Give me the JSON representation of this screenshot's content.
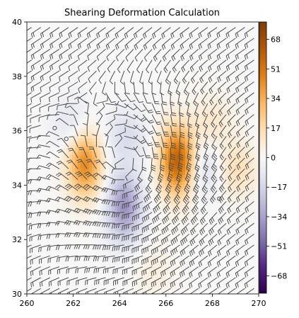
{
  "chart_data": {
    "type": "heatmap",
    "title": "Shearing Deformation Calculation",
    "xlabel": "",
    "ylabel": "",
    "xlim": [
      260,
      270
    ],
    "ylim": [
      30,
      40
    ],
    "x_ticks": [
      "260",
      "262",
      "264",
      "266",
      "268",
      "270"
    ],
    "y_ticks": [
      "30",
      "32",
      "34",
      "36",
      "38",
      "40"
    ],
    "colorbar": {
      "colormap": "PuOr_r",
      "range": [
        -78,
        78
      ],
      "ticks": [
        "68",
        "51",
        "34",
        "17",
        "0",
        "−17",
        "−34",
        "−51",
        "−68"
      ],
      "tick_values": [
        68,
        51,
        34,
        17,
        0,
        -17,
        -34,
        -51,
        -68
      ]
    },
    "field_features": [
      {
        "kind": "max",
        "lon": 262.5,
        "lat": 34.8,
        "value": 45
      },
      {
        "kind": "max",
        "lon": 266.5,
        "lat": 34.9,
        "value": 60
      },
      {
        "kind": "min",
        "lon": 264.2,
        "lat": 33.2,
        "value": -38
      },
      {
        "kind": "min",
        "lon": 264.3,
        "lat": 35.8,
        "value": -14
      },
      {
        "kind": "min",
        "lon": 262.0,
        "lat": 36.2,
        "value": -12
      },
      {
        "kind": "min",
        "lon": 267.7,
        "lat": 34.6,
        "value": -14
      },
      {
        "kind": "max",
        "lon": 269.0,
        "lat": 34.6,
        "value": 16
      },
      {
        "kind": "max",
        "lon": 268.0,
        "lat": 36.3,
        "value": 10
      },
      {
        "kind": "max",
        "lon": 265.5,
        "lat": 30.8,
        "value": 6
      }
    ],
    "wind_barbs": {
      "grid_spacing_deg": 0.4,
      "circulation_center": {
        "lon": 264.6,
        "lat": 34.4
      },
      "calm_points": [
        [
          261.2,
          36.1
        ],
        [
          261.7,
          35.7
        ],
        [
          268.3,
          33.5
        ]
      ]
    },
    "colors": {
      "barb": "#4d4d4d",
      "colormap_stops": [
        "#2d004b",
        "#542788",
        "#8073ac",
        "#b2abd2",
        "#d8daeb",
        "#f7f7f7",
        "#fee0b6",
        "#fdb863",
        "#e08214",
        "#b35806",
        "#7f3b08"
      ]
    }
  }
}
